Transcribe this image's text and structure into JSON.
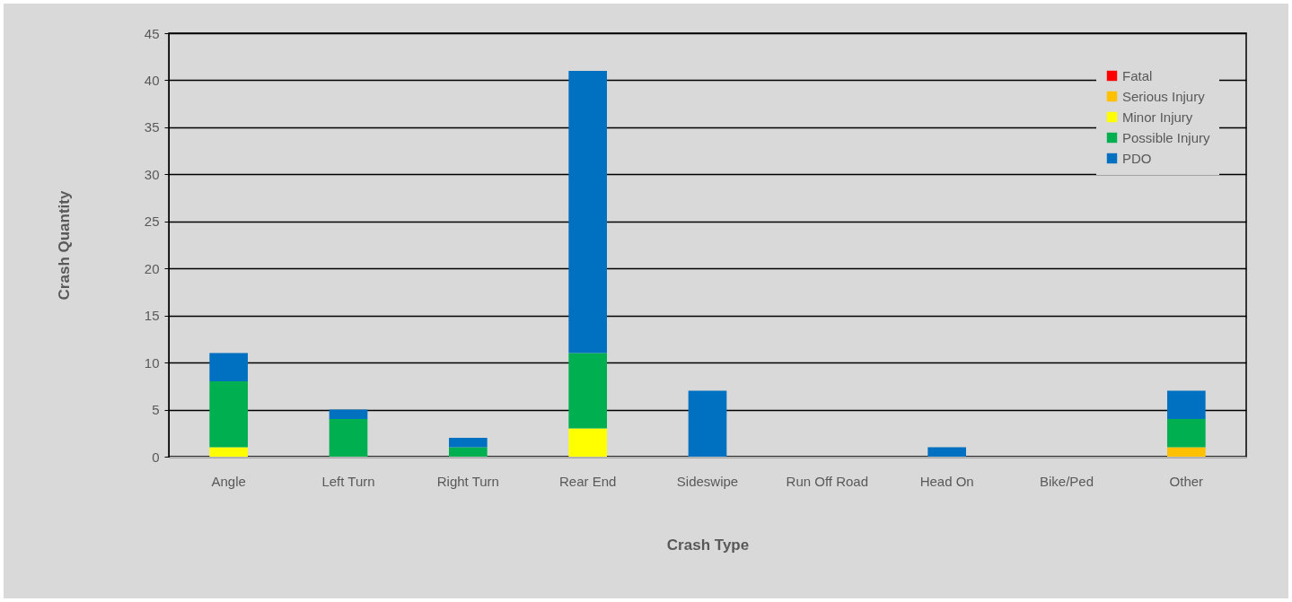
{
  "chart_data": {
    "type": "bar",
    "stacked": true,
    "xlabel": "Crash Type",
    "ylabel": "Crash Quantity",
    "categories": [
      "Angle",
      "Left Turn",
      "Right Turn",
      "Rear End",
      "Sideswipe",
      "Run Off Road",
      "Head On",
      "Bike/Ped",
      "Other"
    ],
    "series": [
      {
        "name": "Fatal",
        "color": "#ff0000",
        "values": [
          0,
          0,
          0,
          0,
          0,
          0,
          0,
          0,
          0
        ]
      },
      {
        "name": "Serious Injury",
        "color": "#ffc000",
        "values": [
          0,
          0,
          0,
          0,
          0,
          0,
          0,
          0,
          1
        ]
      },
      {
        "name": "Minor Injury",
        "color": "#ffff00",
        "values": [
          1,
          0,
          0,
          3,
          0,
          0,
          0,
          0,
          0
        ]
      },
      {
        "name": "Possible Injury",
        "color": "#00b050",
        "values": [
          7,
          4,
          1,
          8,
          0,
          0,
          0,
          0,
          3
        ]
      },
      {
        "name": "PDO",
        "color": "#0070c0",
        "values": [
          3,
          1,
          1,
          30,
          7,
          0,
          1,
          0,
          3
        ]
      }
    ],
    "ylim": [
      0,
      45
    ],
    "yticks": [
      0,
      5,
      10,
      15,
      20,
      25,
      30,
      35,
      40,
      45
    ],
    "grid": "y",
    "legend": "top right"
  }
}
